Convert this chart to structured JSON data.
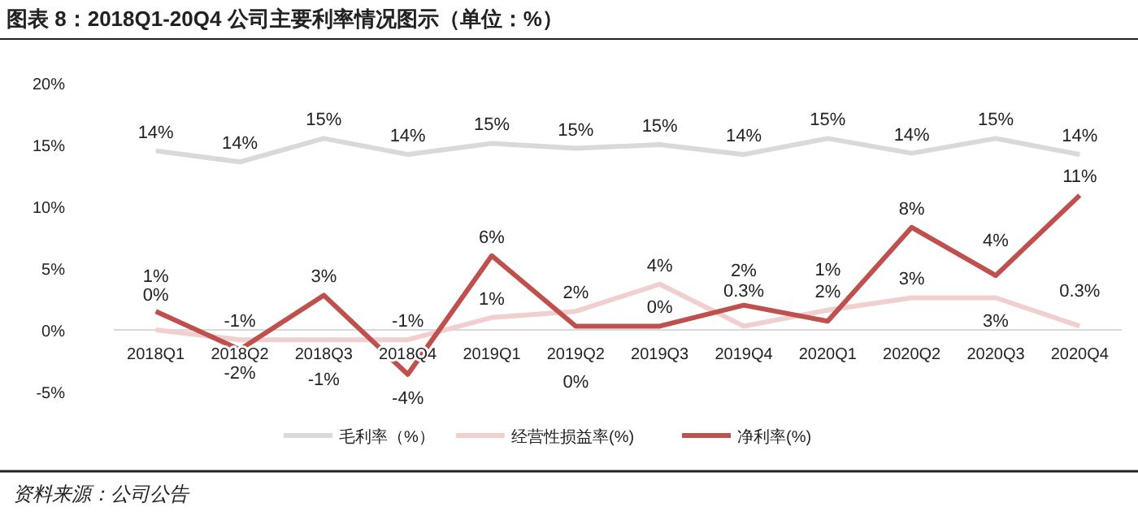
{
  "chart_data": {
    "type": "line",
    "title": "图表 8：2018Q1-20Q4 公司主要利率情况图示（单位：%）",
    "annotations": [
      "资料来源：公司公告"
    ],
    "categories": [
      "2018Q1",
      "2018Q2",
      "2018Q3",
      "2018Q4",
      "2019Q1",
      "2019Q2",
      "2019Q3",
      "2019Q4",
      "2020Q1",
      "2020Q2",
      "2020Q3",
      "2020Q4"
    ],
    "series": [
      {
        "name": "毛利率（%）",
        "color": "#d9d9d9",
        "values": [
          14.5,
          13.6,
          15.5,
          14.2,
          15.1,
          14.7,
          15.0,
          14.2,
          15.5,
          14.3,
          15.5,
          14.2
        ],
        "value_labels": [
          "14%",
          "14%",
          "15%",
          "14%",
          "15%",
          "15%",
          "15%",
          "14%",
          "15%",
          "14%",
          "15%",
          "14%"
        ]
      },
      {
        "name": "经营性损益率(%)",
        "color": "#f2cfcf",
        "values": [
          0,
          -0.8,
          -0.8,
          -0.8,
          1.0,
          1.5,
          3.7,
          0.3,
          1.6,
          2.6,
          2.6,
          0.3
        ],
        "value_labels": [
          "0%",
          "-1%",
          "-1%",
          "-1%",
          "1%",
          "2%",
          "4%",
          "0.3%",
          "2%",
          "3%",
          "3%",
          "0.3%"
        ]
      },
      {
        "name": "净利率(%)",
        "color": "#c0504d",
        "values": [
          1.5,
          -1.6,
          2.8,
          -3.6,
          6.0,
          0.3,
          0.3,
          2.0,
          0.7,
          8.3,
          4.4,
          10.9
        ],
        "value_labels": [
          "1%",
          "-2%",
          "3%",
          "-4%",
          "6%",
          "0%",
          "0%",
          "2%",
          "1%",
          "8%",
          "4%",
          "11%"
        ]
      }
    ],
    "ylim": [
      -5,
      20
    ],
    "yticks": [
      {
        "value": -5,
        "label": "-5%"
      },
      {
        "value": 0,
        "label": "0%"
      },
      {
        "value": 5,
        "label": "5%"
      },
      {
        "value": 10,
        "label": "10%"
      },
      {
        "value": 15,
        "label": "15%"
      },
      {
        "value": 20,
        "label": "20%"
      }
    ],
    "legend": "bottom"
  }
}
